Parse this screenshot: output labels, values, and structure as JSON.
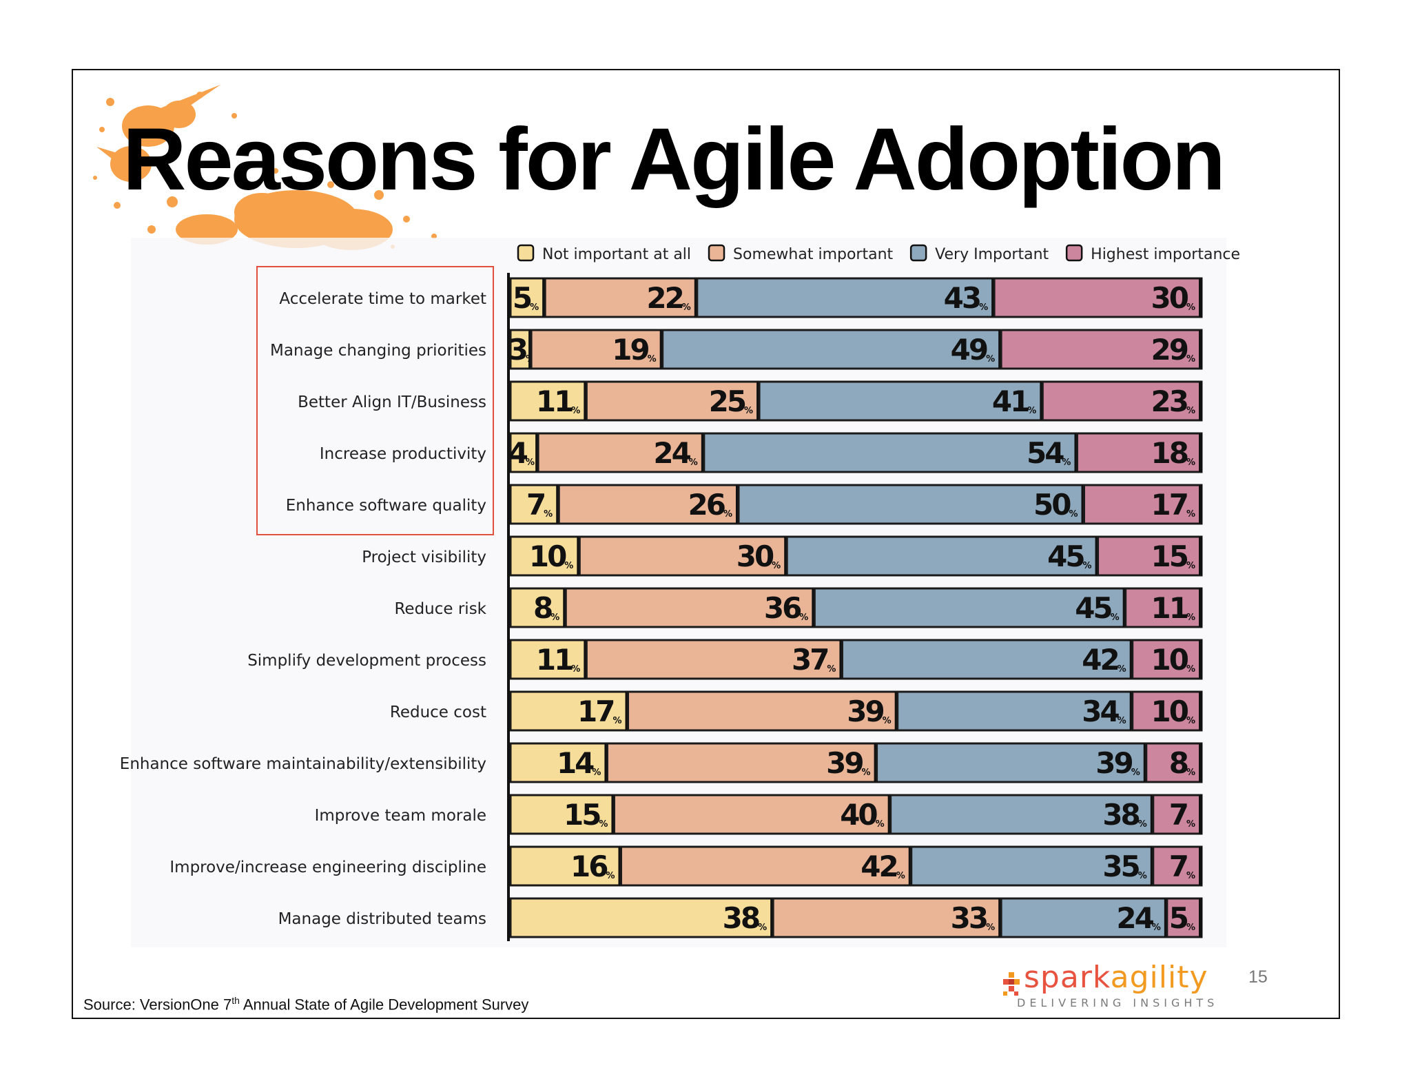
{
  "title": "Reasons for Agile Adoption",
  "source": {
    "prefix": "Source: VersionOne 7",
    "superscript": "th",
    "suffix": " Annual State of Agile Development Survey"
  },
  "page_number": "15",
  "logo": {
    "brand_part1": "spark",
    "brand_part2": "agility",
    "tagline": "DELIVERING INSIGHTS"
  },
  "colors": {
    "not_important": "#f6dd9a",
    "somewhat": "#eab596",
    "very": "#8ea9bd",
    "highest": "#cc869e",
    "highlight_border": "#e0503c",
    "splash": "#f7a24a"
  },
  "chart_data": {
    "type": "bar",
    "orientation": "horizontal",
    "stacked": true,
    "xlim": [
      0,
      100
    ],
    "value_suffix": "%",
    "legend_position": "top",
    "categories": [
      "Accelerate time to market",
      "Manage changing priorities",
      "Better Align IT/Business",
      "Increase productivity",
      "Enhance software quality",
      "Project visibility",
      "Reduce risk",
      "Simplify development process",
      "Reduce cost",
      "Enhance software maintainability/extensibility",
      "Improve team morale",
      "Improve/increase engineering discipline",
      "Manage distributed teams"
    ],
    "series": [
      {
        "name": "Not important at all",
        "values": [
          5,
          3,
          11,
          4,
          7,
          10,
          8,
          11,
          17,
          14,
          15,
          16,
          38
        ]
      },
      {
        "name": "Somewhat important",
        "values": [
          22,
          19,
          25,
          24,
          26,
          30,
          36,
          37,
          39,
          39,
          40,
          42,
          33
        ]
      },
      {
        "name": "Very Important",
        "values": [
          43,
          49,
          41,
          54,
          50,
          45,
          45,
          42,
          34,
          39,
          38,
          35,
          24
        ]
      },
      {
        "name": "Highest importance",
        "values": [
          30,
          29,
          23,
          18,
          17,
          15,
          11,
          10,
          10,
          8,
          7,
          7,
          5
        ]
      }
    ],
    "highlighted_categories": [
      "Accelerate time to market",
      "Manage changing priorities",
      "Better Align IT/Business",
      "Increase productivity",
      "Enhance software quality"
    ]
  }
}
